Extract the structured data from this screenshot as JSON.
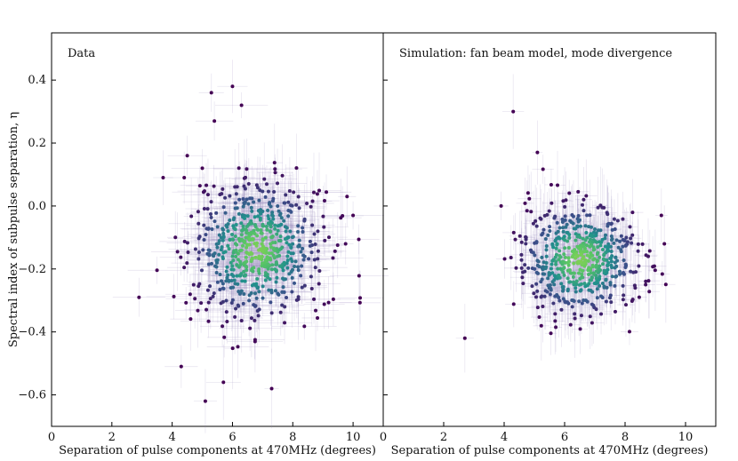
{
  "chart_data": [
    {
      "type": "scatter",
      "panel": "left",
      "annotation": "Data",
      "xlabel": "Separation of pulse components at 470MHz (degrees)",
      "ylabel": "Spectral index of subpulse separation, η",
      "xlim": [
        0,
        11
      ],
      "ylim": [
        -0.7,
        0.55
      ],
      "xticks": [
        "0",
        "2",
        "4",
        "6",
        "8",
        "10"
      ],
      "yticks": [
        "0.4",
        "0.2",
        "0.0",
        "−0.2",
        "−0.4",
        "−0.6"
      ],
      "cloud": {
        "center_x": 6.8,
        "center_y": -0.14,
        "spread_x": 1.1,
        "spread_y": 0.11,
        "count": 620
      },
      "outliers": [
        {
          "x": 6.0,
          "y": 0.38
        },
        {
          "x": 5.3,
          "y": 0.36
        },
        {
          "x": 6.3,
          "y": 0.32
        },
        {
          "x": 5.4,
          "y": 0.27
        },
        {
          "x": 4.5,
          "y": 0.16
        },
        {
          "x": 3.7,
          "y": 0.09
        },
        {
          "x": 4.4,
          "y": 0.09
        },
        {
          "x": 5.0,
          "y": 0.12
        },
        {
          "x": 9.8,
          "y": 0.03
        },
        {
          "x": 10.0,
          "y": -0.03
        },
        {
          "x": 2.9,
          "y": -0.29
        },
        {
          "x": 5.1,
          "y": -0.62
        },
        {
          "x": 5.7,
          "y": -0.56
        },
        {
          "x": 4.3,
          "y": -0.51
        },
        {
          "x": 7.3,
          "y": -0.58
        }
      ]
    },
    {
      "type": "scatter",
      "panel": "right",
      "annotation": "Simulation: fan beam model, mode divergence",
      "xlabel": "Separation of pulse components at 470MHz (degrees)",
      "xlim": [
        0,
        11
      ],
      "ylim": [
        -0.7,
        0.55
      ],
      "xticks": [
        "0",
        "2",
        "4",
        "6",
        "8",
        "10"
      ],
      "cloud": {
        "center_x": 6.5,
        "center_y": -0.17,
        "spread_x": 1.0,
        "spread_y": 0.09,
        "count": 560
      },
      "outliers": [
        {
          "x": 4.3,
          "y": 0.3
        },
        {
          "x": 5.1,
          "y": 0.17
        },
        {
          "x": 2.7,
          "y": -0.42
        },
        {
          "x": 9.2,
          "y": -0.03
        },
        {
          "x": 9.3,
          "y": -0.12
        },
        {
          "x": 3.9,
          "y": 0.0
        }
      ]
    }
  ]
}
